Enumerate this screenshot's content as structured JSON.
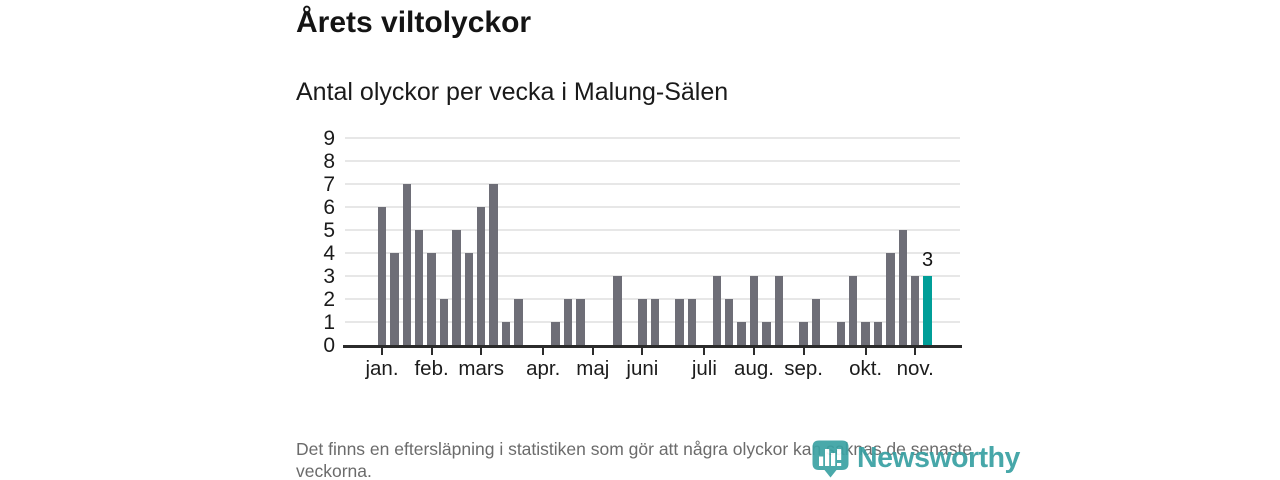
{
  "header": {
    "title": "Årets viltolyckor",
    "subtitle": "Antal olyckor per vecka i Malung-Sälen"
  },
  "footer": {
    "note": "Det finns en eftersläpning i statistiken som gör att några olyckor kan saknas de senaste veckorna.",
    "logo_text": "Newsworthy",
    "logo_icon": "newsworthy-bar-chart-bubble-icon",
    "logo_color": "#38a0a2"
  },
  "chart_data": {
    "type": "bar",
    "title": "Årets viltolyckor",
    "subtitle": "Antal olyckor per vecka i Malung-Sälen",
    "x_period": "week",
    "values": [
      6,
      4,
      7,
      5,
      4,
      2,
      5,
      4,
      6,
      7,
      1,
      2,
      0,
      0,
      1,
      2,
      2,
      0,
      0,
      3,
      0,
      2,
      2,
      0,
      2,
      2,
      0,
      3,
      2,
      1,
      3,
      1,
      3,
      0,
      1,
      2,
      0,
      1,
      3,
      1,
      1,
      4,
      5,
      3,
      3
    ],
    "month_ticks": [
      {
        "label": "jan.",
        "week": 1
      },
      {
        "label": "feb.",
        "week": 5
      },
      {
        "label": "mars",
        "week": 9
      },
      {
        "label": "apr.",
        "week": 14
      },
      {
        "label": "maj",
        "week": 18
      },
      {
        "label": "juni",
        "week": 22
      },
      {
        "label": "juli",
        "week": 27
      },
      {
        "label": "aug.",
        "week": 31
      },
      {
        "label": "sep.",
        "week": 35
      },
      {
        "label": "okt.",
        "week": 40
      },
      {
        "label": "nov.",
        "week": 44
      }
    ],
    "yticks": [
      0,
      1,
      2,
      3,
      4,
      5,
      6,
      7,
      8,
      9
    ],
    "ylim": [
      0,
      9
    ],
    "grid": true,
    "legend": false,
    "bar_color": "#6e6e77",
    "highlight_color": "#009e98",
    "highlight_last_bar": true,
    "last_bar_annotation": "3"
  }
}
